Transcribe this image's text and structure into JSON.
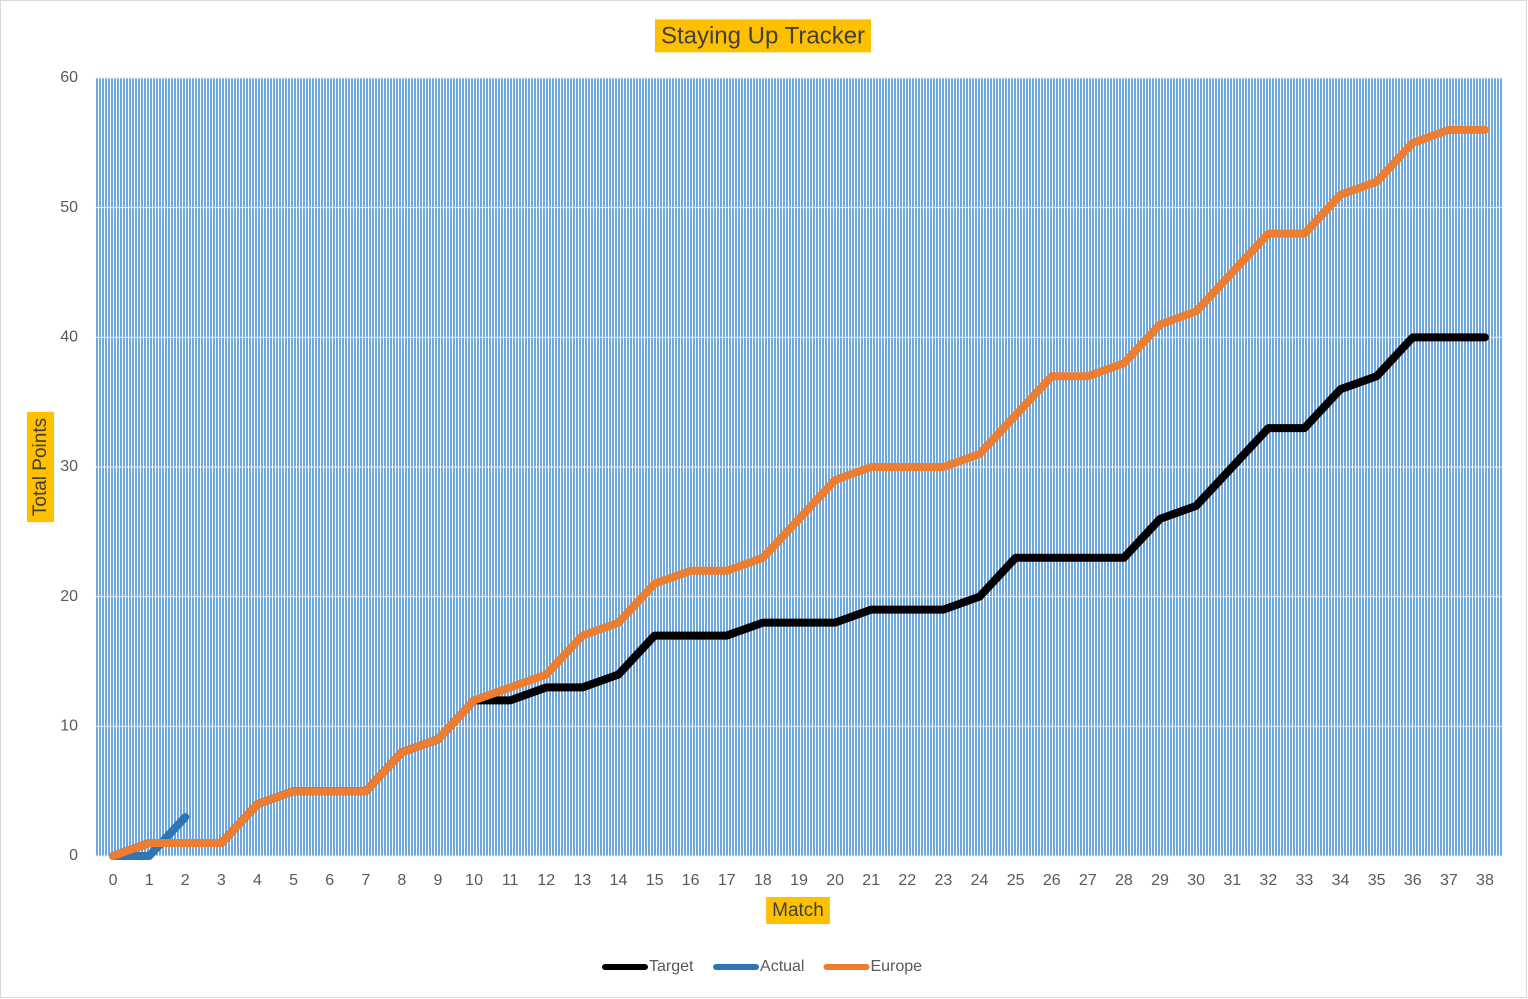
{
  "chart_data": {
    "type": "line",
    "title": "Staying Up Tracker",
    "x_label": "Match",
    "y_label": "Total Points",
    "categories": [
      "0",
      "1",
      "2",
      "3",
      "4",
      "5",
      "6",
      "7",
      "8",
      "9",
      "10",
      "11",
      "12",
      "13",
      "14",
      "15",
      "16",
      "17",
      "18",
      "19",
      "20",
      "21",
      "22",
      "23",
      "24",
      "25",
      "26",
      "27",
      "28",
      "29",
      "30",
      "31",
      "32",
      "33",
      "34",
      "35",
      "36",
      "37",
      "38"
    ],
    "series": [
      {
        "name": "Target",
        "color": "#000000",
        "values": [
          0,
          1,
          1,
          1,
          4,
          5,
          5,
          5,
          8,
          9,
          12,
          12,
          13,
          13,
          14,
          17,
          17,
          17,
          18,
          18,
          18,
          19,
          19,
          19,
          20,
          23,
          23,
          23,
          23,
          26,
          27,
          30,
          33,
          33,
          36,
          37,
          40,
          40,
          40
        ]
      },
      {
        "name": "Actual",
        "color": "#2e75b6",
        "values": [
          0,
          0,
          3,
          null,
          null,
          null,
          null,
          null,
          null,
          null,
          null,
          null,
          null,
          null,
          null,
          null,
          null,
          null,
          null,
          null,
          null,
          null,
          null,
          null,
          null,
          null,
          null,
          null,
          null,
          null,
          null,
          null,
          null,
          null,
          null,
          null,
          null,
          null,
          null
        ]
      },
      {
        "name": "Europe",
        "color": "#ed7d31",
        "values": [
          0,
          1,
          1,
          1,
          4,
          5,
          5,
          5,
          8,
          9,
          12,
          13,
          14,
          17,
          18,
          21,
          22,
          22,
          23,
          26,
          29,
          30,
          30,
          30,
          31,
          34,
          37,
          37,
          38,
          41,
          42,
          45,
          48,
          48,
          51,
          52,
          55,
          56,
          56
        ]
      }
    ],
    "ylim": [
      0,
      60
    ],
    "yticks": [
      0,
      10,
      20,
      30,
      40,
      50,
      60
    ],
    "grid": true,
    "legend": "bottom"
  }
}
